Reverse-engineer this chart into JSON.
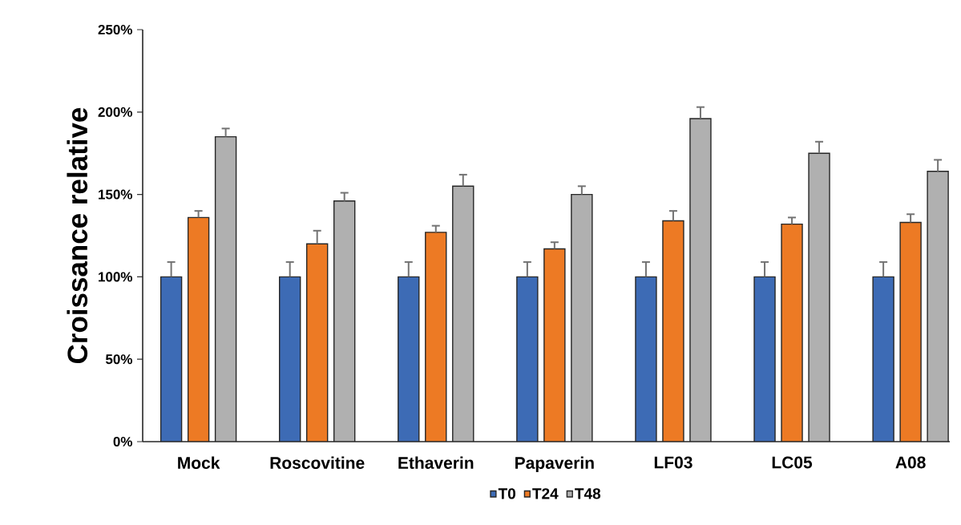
{
  "chart_data": {
    "type": "bar",
    "ylabel": "Croissance relative",
    "categories": [
      "Mock",
      "Roscovitine",
      "Ethaverin",
      "Papaverin",
      "LF03",
      "LC05",
      "A08"
    ],
    "series": [
      {
        "name": "T0",
        "color": "#3d6bb5",
        "values": [
          100,
          100,
          100,
          100,
          100,
          100,
          100
        ],
        "errors": [
          [
            100,
            109
          ],
          [
            100,
            109
          ],
          [
            100,
            109
          ],
          [
            100,
            109
          ],
          [
            100,
            109
          ],
          [
            100,
            109
          ],
          [
            100,
            109
          ]
        ]
      },
      {
        "name": "T24",
        "color": "#ed7a24",
        "values": [
          136,
          120,
          127,
          117,
          134,
          132,
          133
        ],
        "errors": [
          [
            136,
            140
          ],
          [
            120,
            128
          ],
          [
            127,
            131
          ],
          [
            117,
            121
          ],
          [
            134,
            140
          ],
          [
            132,
            136
          ],
          [
            133,
            138
          ]
        ]
      },
      {
        "name": "T48",
        "color": "#b0b0b0",
        "values": [
          185,
          146,
          155,
          150,
          196,
          175,
          164
        ],
        "errors": [
          [
            185,
            190
          ],
          [
            146,
            151
          ],
          [
            155,
            162
          ],
          [
            150,
            155
          ],
          [
            196,
            203
          ],
          [
            175,
            182
          ],
          [
            164,
            171
          ]
        ]
      }
    ],
    "ylim": [
      0,
      250
    ],
    "yticks": [
      {
        "value": 0,
        "label": "0%"
      },
      {
        "value": 50,
        "label": "50%"
      },
      {
        "value": 100,
        "label": "100%"
      },
      {
        "value": 150,
        "label": "150%"
      },
      {
        "value": 200,
        "label": "200%"
      },
      {
        "value": 250,
        "label": "250%"
      }
    ],
    "grid": false,
    "legend": "bottom"
  }
}
